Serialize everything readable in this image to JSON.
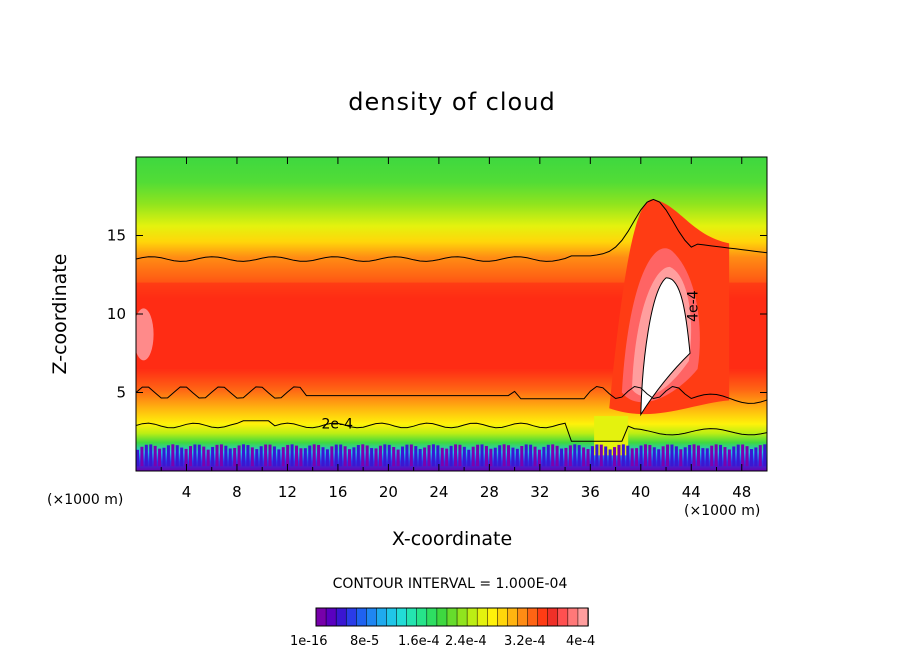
{
  "title": "density of cloud",
  "contour_interval_label": "CONTOUR INTERVAL = 1.000E-04",
  "x_unit": "(×1000 m)",
  "x_unit_right": "(×1000 m)",
  "chart_data": {
    "type": "heatmap",
    "title": "density of cloud",
    "xlabel": "X-coordinate",
    "ylabel": "Z-coordinate",
    "x_unit": "(×1000 m)",
    "xlim": [
      0,
      50
    ],
    "ylim": [
      0,
      20
    ],
    "x_ticks": [
      4,
      8,
      12,
      16,
      20,
      24,
      28,
      32,
      36,
      40,
      44,
      48
    ],
    "y_ticks": [
      5,
      10,
      15
    ],
    "grid": false,
    "contour_interval": 0.0001,
    "contour_levels": [
      {
        "value": 0.0002,
        "label": "2e-4"
      },
      {
        "value": 0.0004,
        "label": "4e-4"
      }
    ],
    "colorbar": {
      "min": 1e-16,
      "max": 0.0004,
      "colors": [
        "#7700aa",
        "#5a00c0",
        "#3a16d2",
        "#2a3ce8",
        "#1f62f0",
        "#1f86f2",
        "#1faaee",
        "#20c6e8",
        "#22dcd6",
        "#24e4b0",
        "#26e48a",
        "#2ede62",
        "#3ed840",
        "#66dc2c",
        "#90e41e",
        "#bcee14",
        "#e4f20e",
        "#fff20a",
        "#ffd60a",
        "#ffb410",
        "#ff8c14",
        "#ff6414",
        "#ff3c14",
        "#f03028",
        "#ff5050",
        "#ff7878",
        "#ff9e9e"
      ],
      "tick_labels": [
        "1e-16",
        "8e-5",
        "1.6e-4",
        "2.4e-4",
        "3.2e-4",
        "4e-4"
      ]
    }
  },
  "icons": {
    "colorbar": "colorbar-legend"
  }
}
